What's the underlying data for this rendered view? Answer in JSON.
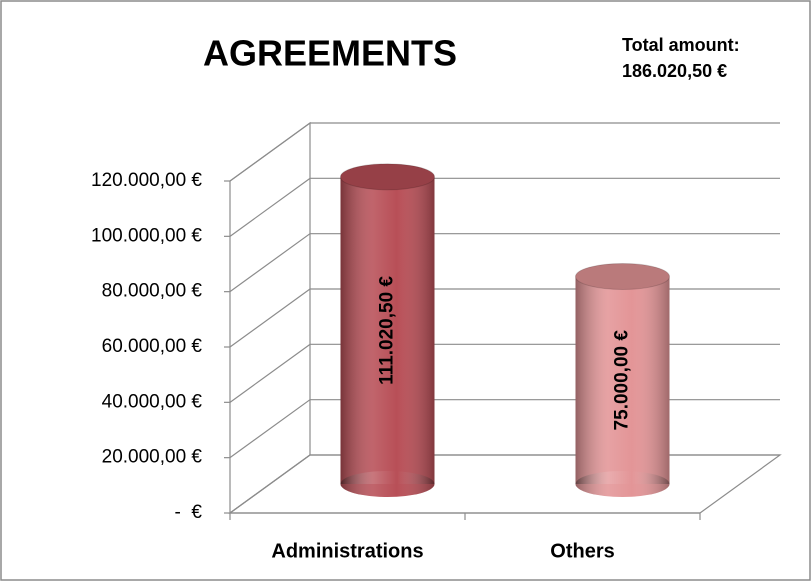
{
  "chart_data": {
    "type": "bar3d",
    "title": "AGREEMENTS",
    "annotation": [
      "Total amount:",
      "186.020,50 €"
    ],
    "categories": [
      "Administrations",
      "Others"
    ],
    "values": [
      111020.5,
      75000
    ],
    "value_labels": [
      "111.020,50 €",
      "75.000,00 €"
    ],
    "colors": [
      "#b84f57",
      "#e39597"
    ],
    "ylim": [
      0,
      120000
    ],
    "yticks": [
      {
        "value": 0,
        "label": "-  €"
      },
      {
        "value": 20000,
        "label": "20.000,00 €"
      },
      {
        "value": 40000,
        "label": "40.000,00 €"
      },
      {
        "value": 60000,
        "label": "60.000,00 €"
      },
      {
        "value": 80000,
        "label": "80.000,00 €"
      },
      {
        "value": 100000,
        "label": "100.000,00 €"
      },
      {
        "value": 120000,
        "label": "120.000,00 €"
      }
    ],
    "grid": true
  }
}
